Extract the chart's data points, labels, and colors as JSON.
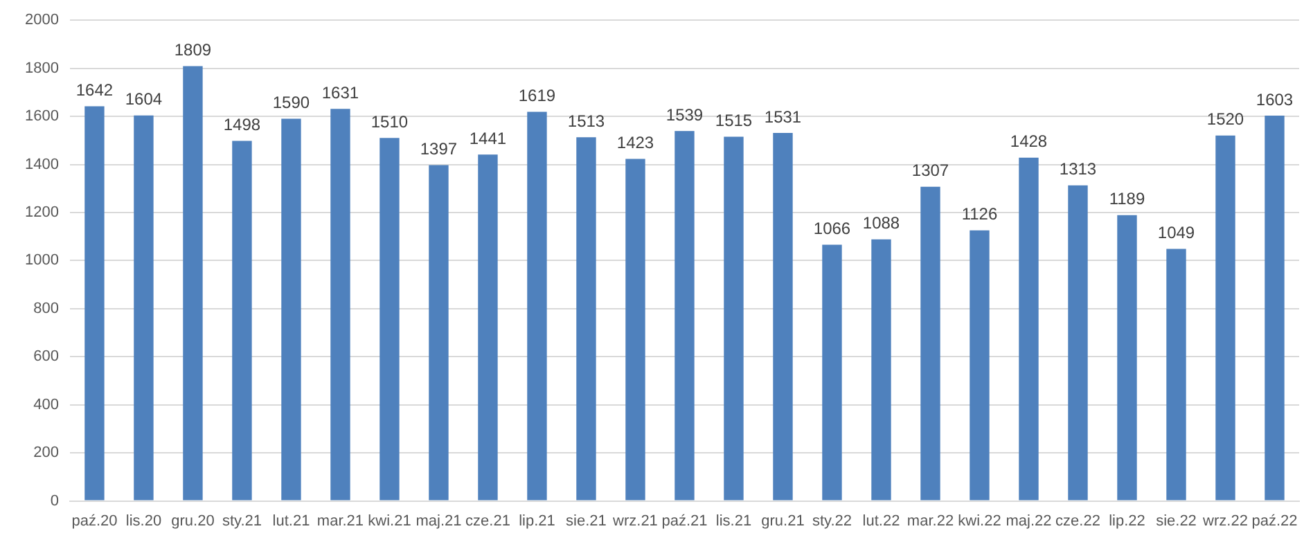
{
  "chart_data": {
    "type": "bar",
    "categories": [
      "paź.20",
      "lis.20",
      "gru.20",
      "sty.21",
      "lut.21",
      "mar.21",
      "kwi.21",
      "maj.21",
      "cze.21",
      "lip.21",
      "sie.21",
      "wrz.21",
      "paź.21",
      "lis.21",
      "gru.21",
      "sty.22",
      "lut.22",
      "mar.22",
      "kwi.22",
      "maj.22",
      "cze.22",
      "lip.22",
      "sie.22",
      "wrz.22",
      "paź.22"
    ],
    "values": [
      1642,
      1604,
      1809,
      1498,
      1590,
      1631,
      1510,
      1397,
      1441,
      1619,
      1513,
      1423,
      1539,
      1515,
      1531,
      1066,
      1088,
      1307,
      1126,
      1428,
      1313,
      1189,
      1049,
      1520,
      1603
    ],
    "color": "#4f81bd",
    "ylim": [
      0,
      2000
    ],
    "yticks": [
      0,
      200,
      400,
      600,
      800,
      1000,
      1200,
      1400,
      1600,
      1800,
      2000
    ],
    "grid": "y",
    "data_labels": true,
    "legend": false
  }
}
